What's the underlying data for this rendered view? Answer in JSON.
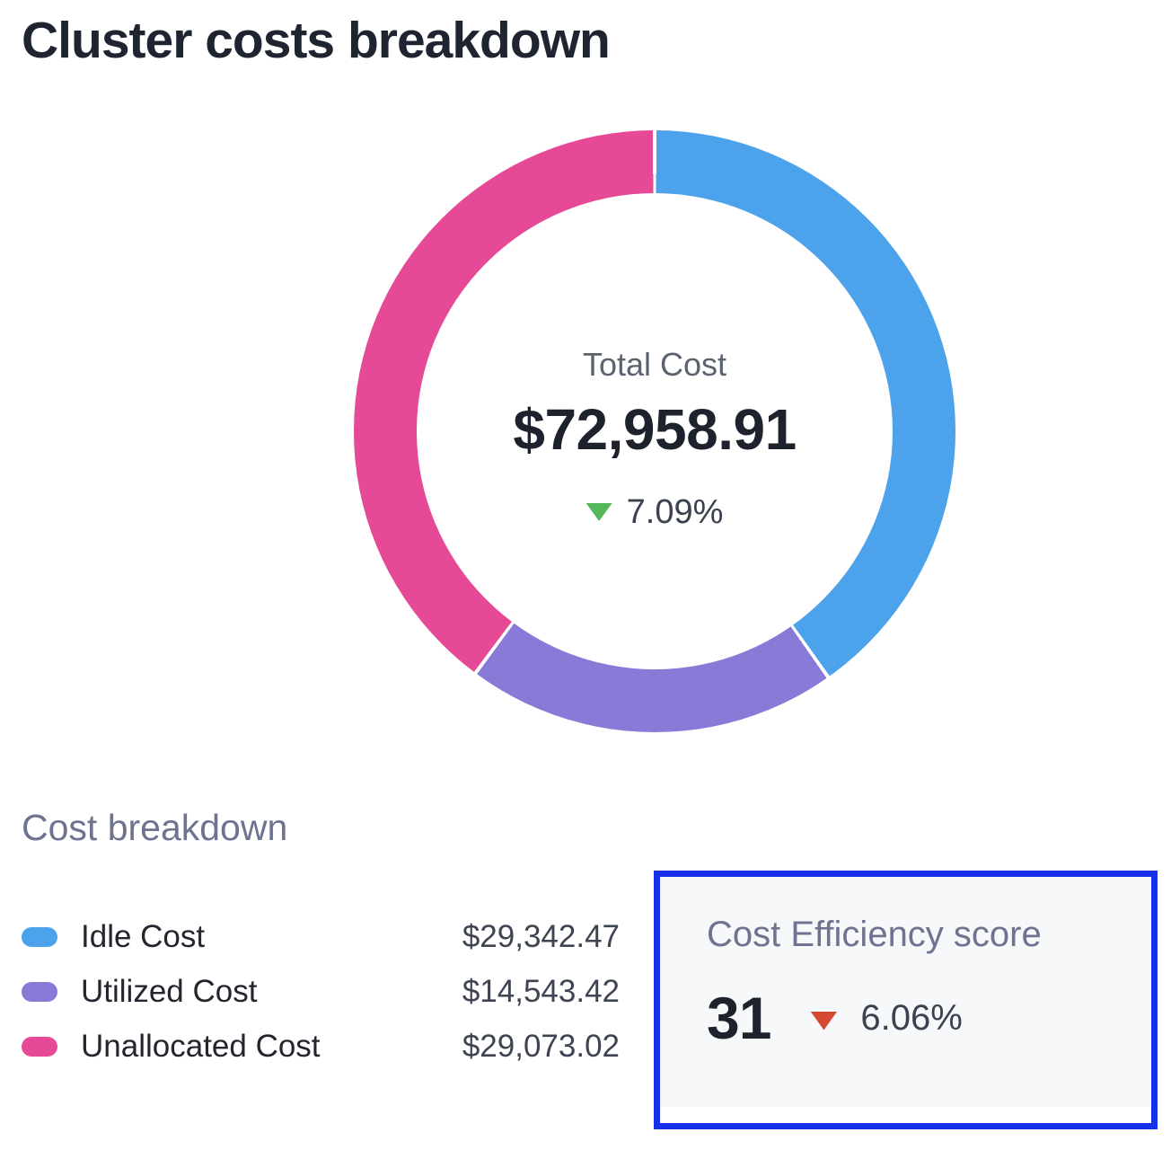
{
  "chart_data": {
    "type": "pie",
    "donut": true,
    "title": "Cluster costs breakdown",
    "center_label": "Total Cost",
    "total_display": "$72,958.91",
    "total_value": 72958.91,
    "delta": {
      "value": "7.09%",
      "direction": "down",
      "color": "#53B85A"
    },
    "start_angle_deg": 0,
    "clockwise": true,
    "legend_position": "bottom-left",
    "series": [
      {
        "name": "Idle Cost",
        "value": 29342.47,
        "display": "$29,342.47",
        "color": "#4CA2EB"
      },
      {
        "name": "Utilized Cost",
        "value": 14543.42,
        "display": "$14,543.42",
        "color": "#877BD7"
      },
      {
        "name": "Unallocated Cost",
        "value": 29073.02,
        "display": "$29,073.02",
        "color": "#E64A97"
      }
    ]
  },
  "legend": {
    "heading": "Cost breakdown"
  },
  "efficiency": {
    "label": "Cost Efficiency score",
    "score": "31",
    "delta": {
      "value": "6.06%",
      "direction": "down",
      "color": "#D64933"
    },
    "highlight_border_color": "#1530E8",
    "card_background": "#F7F8FA"
  }
}
